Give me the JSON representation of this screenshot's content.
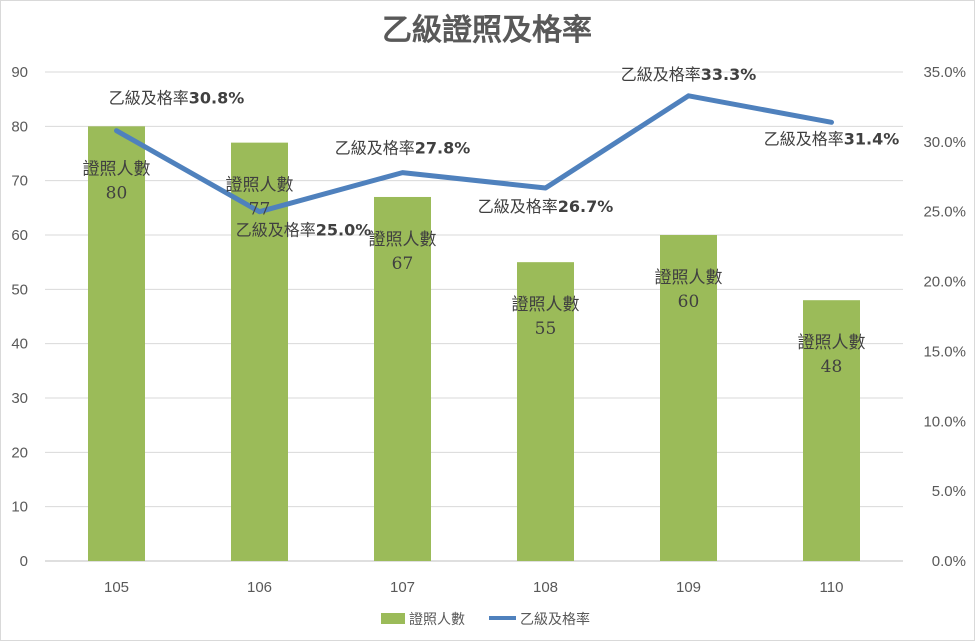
{
  "chart_data": {
    "type": "bar",
    "title": "乙級證照及格率",
    "categories": [
      "105",
      "106",
      "107",
      "108",
      "109",
      "110"
    ],
    "series": [
      {
        "name": "證照人數",
        "type": "bar",
        "axis": "left",
        "values": [
          80,
          77,
          67,
          55,
          60,
          48
        ],
        "color": "#9bbb59",
        "data_labels": [
          "證照人數\n80",
          "證照人數\n77",
          "證照人數\n67",
          "證照人數\n55",
          "證照人數\n60",
          "證照人數\n48"
        ]
      },
      {
        "name": "乙級及格率",
        "type": "line",
        "axis": "right",
        "values": [
          30.8,
          25.0,
          27.8,
          26.7,
          33.3,
          31.4
        ],
        "color": "#4f81bd",
        "data_labels": [
          "30.8%",
          "25.0%",
          "27.8%",
          "26.7%",
          "33.3%",
          "31.4%"
        ],
        "label_prefix": "乙級及格率"
      }
    ],
    "y_left": {
      "min": 0,
      "max": 90,
      "step": 10,
      "ticks": [
        "0",
        "10",
        "20",
        "30",
        "40",
        "50",
        "60",
        "70",
        "80",
        "90"
      ]
    },
    "y_right": {
      "min": 0,
      "max": 35,
      "step": 5,
      "ticks": [
        "0.0%",
        "5.0%",
        "10.0%",
        "15.0%",
        "20.0%",
        "25.0%",
        "30.0%",
        "35.0%"
      ]
    },
    "grid": true,
    "legend": {
      "position": "bottom",
      "entries": [
        "證照人數",
        "乙級及格率"
      ]
    },
    "xlabel": "",
    "ylabel": ""
  }
}
